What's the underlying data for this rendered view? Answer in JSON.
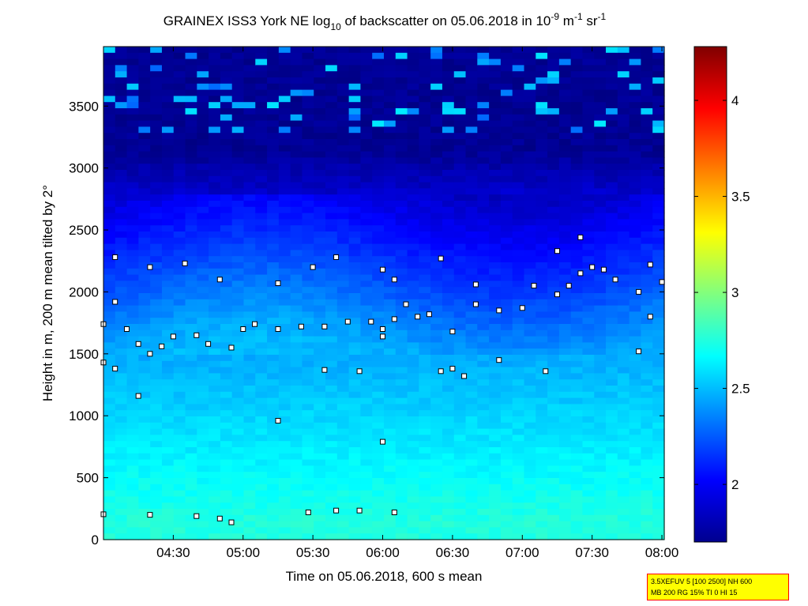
{
  "chart_data": {
    "type": "heatmap",
    "title_parts": {
      "main": "GRAINEX ISS3 York NE log",
      "sub10": "10",
      "mid": " of backscatter on 05.06.2018 in 10",
      "sup1": "-9",
      "m": " m",
      "sup2": "-1",
      "sr": " sr",
      "sup3": "-1"
    },
    "xlabel": "Time on 05.06.2018, 600 s mean",
    "ylabel": "Height in m, 200 m mean tilted by 2°",
    "xticks": [
      "04:30",
      "05:00",
      "05:30",
      "06:00",
      "06:30",
      "07:00",
      "07:30",
      "08:00"
    ],
    "xlim": [
      "04:00",
      "08:01"
    ],
    "yticks": [
      0,
      500,
      1000,
      1500,
      2000,
      2500,
      3000,
      3500
    ],
    "ylim": [
      0,
      3980
    ],
    "colorbar": {
      "ticks": [
        "2",
        "2.5",
        "3",
        "3.5",
        "4"
      ],
      "tick_values": [
        2,
        2.5,
        3,
        3.5,
        4
      ],
      "range": [
        1.7,
        4.28
      ],
      "colormap": "jet"
    },
    "background_field": {
      "description_levels": [
        {
          "height_range": [
            0,
            300
          ],
          "value": 2.75
        },
        {
          "height_range": [
            300,
            1200
          ],
          "value": 2.62
        },
        {
          "height_range": [
            1200,
            1800
          ],
          "value": 2.45
        },
        {
          "height_range": [
            1800,
            2300
          ],
          "value": 2.2
        },
        {
          "height_range": [
            2300,
            3980
          ],
          "value": 1.75
        }
      ]
    },
    "markers": {
      "low_layer": [
        [
          "04:00",
          205
        ],
        [
          "04:20",
          200
        ],
        [
          "04:40",
          190
        ],
        [
          "04:50",
          170
        ],
        [
          "04:55",
          140
        ],
        [
          "05:28",
          220
        ],
        [
          "05:40",
          235
        ],
        [
          "05:50",
          235
        ],
        [
          "06:05",
          220
        ]
      ],
      "main_layer": [
        [
          "04:00",
          1430
        ],
        [
          "04:05",
          1380
        ],
        [
          "04:10",
          1700
        ],
        [
          "04:15",
          1580
        ],
        [
          "04:20",
          1500
        ],
        [
          "04:25",
          1560
        ],
        [
          "04:30",
          1640
        ],
        [
          "04:40",
          1650
        ],
        [
          "04:45",
          1580
        ],
        [
          "04:55",
          1550
        ],
        [
          "05:00",
          1700
        ],
        [
          "05:05",
          1740
        ],
        [
          "05:15",
          1700
        ],
        [
          "05:25",
          1720
        ],
        [
          "05:35",
          1720
        ],
        [
          "05:45",
          1760
        ],
        [
          "05:55",
          1760
        ],
        [
          "06:00",
          1700
        ],
        [
          "06:05",
          2100
        ],
        [
          "06:10",
          1900
        ],
        [
          "06:15",
          1800
        ],
        [
          "06:20",
          1820
        ],
        [
          "06:30",
          1680
        ],
        [
          "06:40",
          1900
        ],
        [
          "06:50",
          1850
        ],
        [
          "07:00",
          1870
        ],
        [
          "07:05",
          2050
        ],
        [
          "07:15",
          1980
        ],
        [
          "07:20",
          2050
        ],
        [
          "07:25",
          2150
        ],
        [
          "07:30",
          2200
        ],
        [
          "07:35",
          2180
        ],
        [
          "07:40",
          2100
        ],
        [
          "07:50",
          2000
        ],
        [
          "07:55",
          1800
        ],
        [
          "08:00",
          2080
        ]
      ],
      "upper_points": [
        [
          "04:05",
          2280
        ],
        [
          "04:20",
          2200
        ],
        [
          "04:35",
          2230
        ],
        [
          "04:50",
          2100
        ],
        [
          "05:15",
          2070
        ],
        [
          "05:30",
          2200
        ],
        [
          "05:40",
          2280
        ],
        [
          "06:00",
          2180
        ],
        [
          "06:25",
          2270
        ],
        [
          "06:40",
          2060
        ],
        [
          "07:15",
          2330
        ],
        [
          "07:25",
          2440
        ],
        [
          "07:55",
          2220
        ]
      ],
      "other_points": [
        [
          "04:15",
          1160
        ],
        [
          "05:15",
          960
        ],
        [
          "05:35",
          1370
        ],
        [
          "05:50",
          1360
        ],
        [
          "06:00",
          790
        ],
        [
          "06:25",
          1360
        ],
        [
          "06:30",
          1380
        ],
        [
          "06:35",
          1320
        ],
        [
          "06:50",
          1450
        ],
        [
          "07:10",
          1360
        ],
        [
          "07:50",
          1520
        ],
        [
          "06:00",
          1640
        ],
        [
          "06:05",
          1780
        ],
        [
          "04:05",
          1920
        ],
        [
          "04:00",
          1740
        ]
      ]
    }
  },
  "info_box": {
    "line1": "3.5XEFUV 5 [100 2500] NH 600",
    "line2": "MB 200 RG 15% TI 0 HI 15"
  }
}
